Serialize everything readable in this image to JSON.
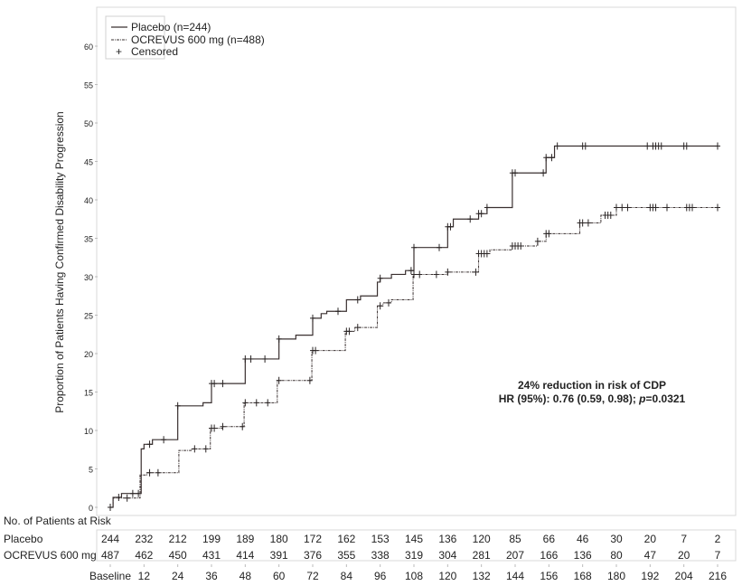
{
  "chart_data": {
    "type": "line",
    "step": true,
    "ylabel": "Proportion of Patients Having Confirmed Disability Progression",
    "xlabel": "",
    "ylim": [
      0,
      60
    ],
    "yticks": [
      0,
      5,
      10,
      15,
      20,
      25,
      30,
      35,
      40,
      45,
      50,
      55,
      60
    ],
    "xlim": [
      0,
      216
    ],
    "xticks": [
      0,
      12,
      24,
      36,
      48,
      60,
      72,
      84,
      96,
      108,
      120,
      132,
      144,
      156,
      168,
      180,
      192,
      204,
      216
    ],
    "xtick_labels": [
      "Baseline",
      "12",
      "24",
      "36",
      "48",
      "60",
      "72",
      "84",
      "96",
      "108",
      "120",
      "132",
      "144",
      "156",
      "168",
      "180",
      "192",
      "204",
      "216"
    ],
    "grid": false,
    "legend_position": "top-left",
    "legend": [
      "Placebo (n=244)",
      "OCREVUS 600 mg (n=488)",
      "Censored"
    ],
    "censor_symbol": "+",
    "annotation": {
      "line1": "24% reduction in risk of CDP",
      "line2_prefix": "HR (95%): 0.76 (0.59, 0.98); ",
      "line2_p": "p",
      "line2_suffix": "=0.0321"
    },
    "series": [
      {
        "name": "Placebo (n=244)",
        "style": "solid",
        "color": "#3a3030",
        "points": [
          [
            0,
            0
          ],
          [
            1,
            1.3
          ],
          [
            4,
            1.8
          ],
          [
            11,
            7.6
          ],
          [
            12,
            8.2
          ],
          [
            15,
            8.8
          ],
          [
            24,
            13.2
          ],
          [
            33,
            13.6
          ],
          [
            36,
            16.1
          ],
          [
            48,
            19.3
          ],
          [
            60,
            21.9
          ],
          [
            66,
            22.4
          ],
          [
            72,
            24.6
          ],
          [
            75,
            25.2
          ],
          [
            77,
            25.5
          ],
          [
            84,
            27.0
          ],
          [
            89,
            27.5
          ],
          [
            95,
            29.3
          ],
          [
            96,
            29.8
          ],
          [
            100,
            30.3
          ],
          [
            105,
            30.8
          ],
          [
            108,
            33.8
          ],
          [
            120,
            36.5
          ],
          [
            122,
            37.5
          ],
          [
            131,
            38.2
          ],
          [
            134,
            39.0
          ],
          [
            143,
            43.5
          ],
          [
            155,
            45.5
          ],
          [
            158,
            47.0
          ]
        ],
        "censored": [
          0,
          3,
          8,
          10,
          14,
          19,
          24,
          36,
          37,
          40,
          48,
          50,
          55,
          60,
          72,
          81,
          88,
          96,
          107,
          108,
          117,
          120,
          121,
          128,
          131,
          132,
          134,
          143,
          144,
          154,
          155,
          157,
          159,
          168,
          169,
          191,
          193,
          194,
          195,
          196,
          204,
          205,
          227,
          228,
          252
        ]
      },
      {
        "name": "OCREVUS 600 mg (n=488)",
        "style": "dash-dot",
        "color": "#3a3030",
        "points": [
          [
            0,
            0
          ],
          [
            1,
            1.2
          ],
          [
            10.6,
            4.2
          ],
          [
            13,
            4.5
          ],
          [
            24.4,
            7.4
          ],
          [
            29,
            7.6
          ],
          [
            35.6,
            10.3
          ],
          [
            40,
            10.5
          ],
          [
            47.6,
            13.6
          ],
          [
            59.4,
            16.5
          ],
          [
            71.7,
            20.4
          ],
          [
            83.6,
            22.9
          ],
          [
            87,
            23.4
          ],
          [
            95,
            26.2
          ],
          [
            97,
            26.6
          ],
          [
            100,
            27.0
          ],
          [
            107.7,
            30.3
          ],
          [
            120,
            30.6
          ],
          [
            131,
            33.0
          ],
          [
            135,
            33.5
          ],
          [
            143,
            34.0
          ],
          [
            152,
            34.6
          ],
          [
            155,
            35.6
          ],
          [
            167,
            37.0
          ],
          [
            174.5,
            38.0
          ],
          [
            180,
            39.0
          ]
        ],
        "censored": [
          0,
          6,
          14,
          17,
          30,
          34,
          36,
          37,
          40,
          47,
          48,
          52,
          56,
          60,
          71,
          72,
          73,
          84,
          85,
          88,
          96,
          99,
          108,
          110,
          116,
          120,
          130,
          131,
          132,
          133,
          134,
          143,
          144,
          145,
          146,
          152,
          155,
          156,
          167,
          168,
          170,
          176,
          177,
          178,
          180,
          182,
          184,
          192,
          193,
          194,
          198,
          205,
          206,
          207,
          216
        ]
      }
    ],
    "risk_table": {
      "title": "No. of Patients at Risk",
      "rows": [
        {
          "label": "Placebo",
          "values": [
            "244",
            "232",
            "212",
            "199",
            "189",
            "180",
            "172",
            "162",
            "153",
            "145",
            "136",
            "120",
            "85",
            "66",
            "46",
            "30",
            "20",
            "7",
            "2"
          ]
        },
        {
          "label": "OCREVUS 600 mg",
          "values": [
            "487",
            "462",
            "450",
            "431",
            "414",
            "391",
            "376",
            "355",
            "338",
            "319",
            "304",
            "281",
            "207",
            "166",
            "136",
            "80",
            "47",
            "20",
            "7"
          ]
        }
      ]
    }
  }
}
